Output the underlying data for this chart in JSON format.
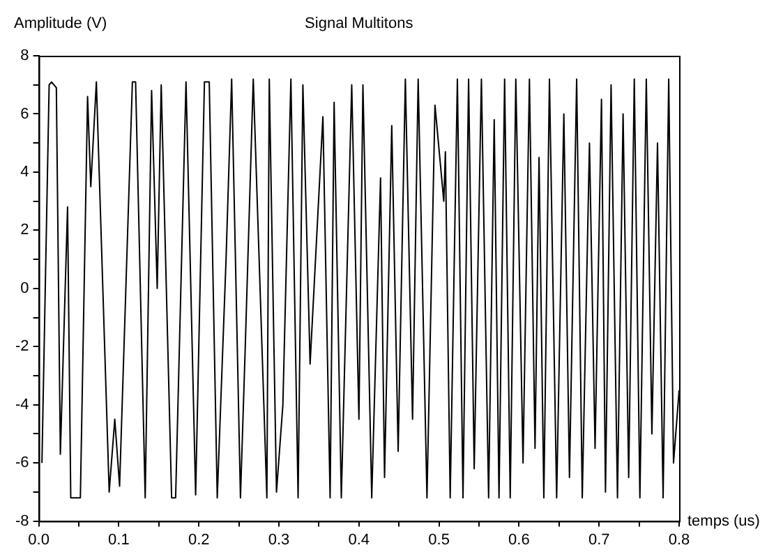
{
  "chart_data": {
    "type": "line",
    "title": "Signal Multitons",
    "xlabel": "temps (us)",
    "ylabel": "Amplitude (V)",
    "xlim": [
      0,
      0.8
    ],
    "ylim": [
      -8,
      8
    ],
    "xticks": [
      {
        "value": 0,
        "label": "0.0"
      },
      {
        "value": 0.05,
        "label": null
      },
      0.1,
      {
        "value": 0.15,
        "label": null
      },
      0.2,
      {
        "value": 0.25,
        "label": null
      },
      0.3,
      {
        "value": 0.35,
        "label": null
      },
      0.4,
      {
        "value": 0.45,
        "label": null
      },
      0.5,
      {
        "value": 0.55,
        "label": null
      },
      0.6,
      {
        "value": 0.65,
        "label": null
      },
      0.7,
      {
        "value": 0.75,
        "label": null
      },
      0.8
    ],
    "yticks": [
      -8,
      {
        "value": -7,
        "label": null
      },
      -6,
      {
        "value": -5,
        "label": null
      },
      -4,
      {
        "value": -3,
        "label": null
      },
      -2,
      {
        "value": -1,
        "label": null
      },
      0,
      {
        "value": 1,
        "label": null
      },
      2,
      {
        "value": 3,
        "label": null
      },
      4,
      {
        "value": 5,
        "label": null
      },
      6,
      {
        "value": 7,
        "label": null
      },
      8
    ],
    "grid": false,
    "legend": false,
    "marker": "none",
    "line_style": "solid",
    "series": [
      {
        "color": "#000000",
        "x": [
          0.004,
          0.013,
          0.016,
          0.022,
          0.027,
          0.036,
          0.04,
          0.052,
          0.061,
          0.065,
          0.072,
          0.088,
          0.095,
          0.101,
          0.117,
          0.121,
          0.133,
          0.141,
          0.148,
          0.153,
          0.166,
          0.171,
          0.184,
          0.196,
          0.207,
          0.213,
          0.223,
          0.234,
          0.241,
          0.252,
          0.258,
          0.268,
          0.285,
          0.288,
          0.297,
          0.305,
          0.315,
          0.324,
          0.33,
          0.339,
          0.355,
          0.364,
          0.369,
          0.378,
          0.391,
          0.4,
          0.405,
          0.416,
          0.427,
          0.432,
          0.441,
          0.449,
          0.458,
          0.467,
          0.474,
          0.485,
          0.495,
          0.506,
          0.508,
          0.514,
          0.523,
          0.53,
          0.537,
          0.544,
          0.553,
          0.562,
          0.569,
          0.575,
          0.582,
          0.589,
          0.596,
          0.605,
          0.613,
          0.62,
          0.625,
          0.631,
          0.638,
          0.647,
          0.656,
          0.663,
          0.672,
          0.679,
          0.688,
          0.695,
          0.703,
          0.708,
          0.715,
          0.723,
          0.73,
          0.737,
          0.744,
          0.751,
          0.759,
          0.766,
          0.773,
          0.78,
          0.787,
          0.793,
          0.8
        ],
        "values": [
          -6,
          7.0,
          7.1,
          6.9,
          -5.7,
          2.8,
          -7.2,
          -7.2,
          6.6,
          3.5,
          7.1,
          -7.0,
          -4.5,
          -6.8,
          7.1,
          7.1,
          -7.2,
          6.8,
          0,
          7.0,
          -7.2,
          -7.2,
          7.1,
          -7.1,
          7.1,
          7.1,
          -7.2,
          1.0,
          7.2,
          -7.2,
          -2,
          7.2,
          -7.2,
          7.2,
          -7.0,
          -4,
          7.2,
          -7.2,
          7.0,
          -2.6,
          5.9,
          -7.2,
          6.4,
          -7.2,
          7.0,
          -4.5,
          7.0,
          -7.2,
          3.8,
          -6.5,
          5.6,
          -5.6,
          7.2,
          -4.5,
          7.2,
          -7.2,
          6.3,
          3,
          4.7,
          -7.2,
          7.2,
          -7.2,
          7.2,
          -6.2,
          7.2,
          -7.2,
          5.8,
          -7.2,
          7.2,
          -7.2,
          7.2,
          -6,
          7.2,
          -5.5,
          4.5,
          -7.2,
          7.2,
          -7.2,
          6,
          -6.5,
          7.2,
          -7.2,
          5,
          -5.5,
          6.5,
          -7,
          7,
          -7.2,
          6,
          -6.5,
          7.2,
          -7.2,
          7.2,
          -5,
          5,
          -7.2,
          7.2,
          -6,
          -3.5
        ]
      }
    ]
  }
}
